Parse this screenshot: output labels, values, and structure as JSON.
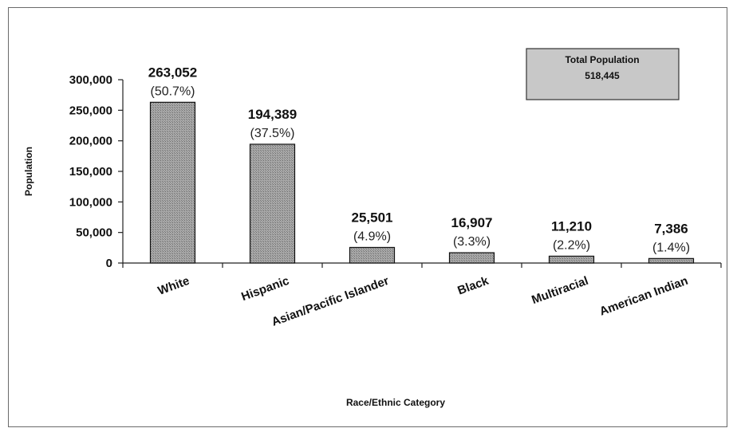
{
  "chart_data": {
    "type": "bar",
    "categories": [
      "White",
      "Hispanic",
      "Asian/Pacific Islander",
      "Black",
      "Multiracial",
      "American Indian"
    ],
    "values": [
      263052,
      194389,
      25501,
      16907,
      11210,
      7386
    ],
    "value_labels": [
      "263,052",
      "194,389",
      "25,501",
      "16,907",
      "11,210",
      "7,386"
    ],
    "percent_labels": [
      "(50.7%)",
      "(37.5%)",
      "(4.9%)",
      "(3.3%)",
      "(2.2%)",
      "(1.4%)"
    ],
    "ylim": [
      0,
      300000
    ],
    "yticks": [
      0,
      50000,
      100000,
      150000,
      200000,
      250000,
      300000
    ],
    "ytick_labels": [
      "0",
      "50,000",
      "100,000",
      "150,000",
      "200,000",
      "250,000",
      "300,000"
    ],
    "xlabel": "Race/Ethnic Category",
    "ylabel": "Population",
    "annotation": {
      "title": "Total Population",
      "value": "518,445"
    },
    "grid": false,
    "bar_color": "#9a9a9a",
    "annotation_box_color": "#c8c8c8"
  }
}
